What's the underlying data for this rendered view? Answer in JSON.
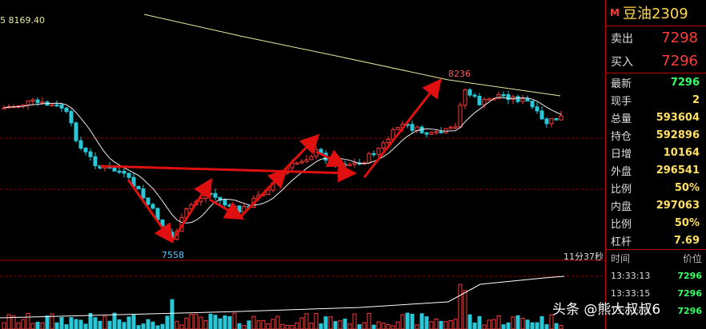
{
  "chart": {
    "ma_label": "5 8169.40",
    "high_label": "8236",
    "low_label": "7558",
    "timer": "11分37秒"
  },
  "panel": {
    "badge": "M",
    "name": "豆油2309",
    "ask_label": "卖出",
    "ask_value": "7298",
    "bid_label": "买入",
    "bid_value": "7296",
    "stats": [
      {
        "label": "最新",
        "value": "7296",
        "color": "#33ff66"
      },
      {
        "label": "现手",
        "value": "2",
        "color": "#ffe060"
      },
      {
        "label": "总量",
        "value": "593604",
        "color": "#ffe060"
      },
      {
        "label": "持仓",
        "value": "592896",
        "color": "#ffe060"
      },
      {
        "label": "日增",
        "value": "10164",
        "color": "#ffe060"
      },
      {
        "label": "外盘",
        "value": "296541",
        "color": "#ffe060"
      },
      {
        "label": "比例",
        "value": "50%",
        "color": "#ffe060"
      },
      {
        "label": "内盘",
        "value": "297063",
        "color": "#ffe060"
      },
      {
        "label": "比例",
        "value": "50%",
        "color": "#ffe060"
      },
      {
        "label": "杠杆",
        "value": "7.69",
        "color": "#ffe060"
      }
    ],
    "tick_header": {
      "time": "时间",
      "price": "价位"
    },
    "ticks": [
      {
        "time": "13:33:13",
        "price": "7296"
      },
      {
        "time": "13:33:15",
        "price": "7296"
      },
      {
        "time": "13:33:15",
        "price": "7296"
      }
    ]
  },
  "watermark": "头条 @熊大叔叔6",
  "colors": {
    "up": "#ff3b3b",
    "down": "#28c8d8",
    "ma_long": "#e8e8a0",
    "ma_short": "#eeeeee",
    "arrow": "#e01010"
  }
}
